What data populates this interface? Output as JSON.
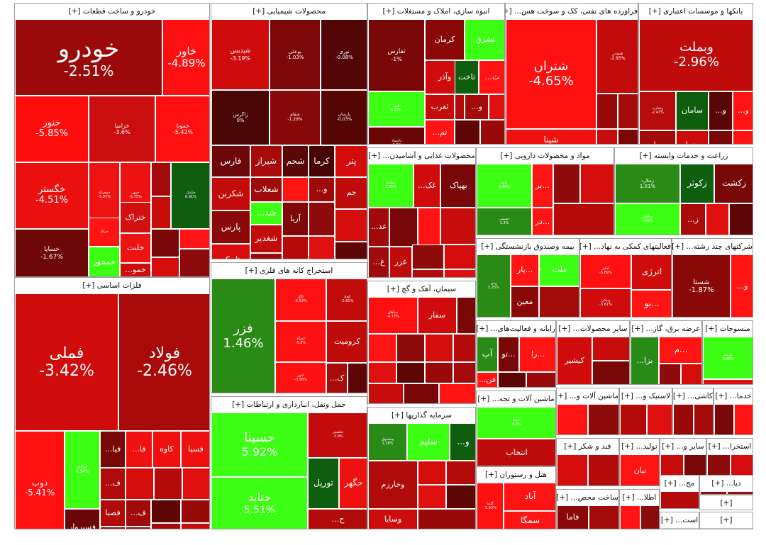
{
  "colors": {
    "deep_red": "#7a0000",
    "dark_red": "#8e0b0b",
    "red": "#c80b0b",
    "bright_red": "#ff1313",
    "light_green": "#3cff14",
    "dark_green": "#0f5e0f",
    "mid_green": "#2a8a16",
    "grey_border": "#9e9e9e"
  },
  "sectors": [
    {
      "title": "خودرو و ساخت قطعات [+]",
      "tiles": [
        {
          "name": "خودرو",
          "pct": "-2.51%",
          "color": "#9a0a0a"
        },
        {
          "name": "خاور",
          "pct": "-4.89%",
          "color": "#ff1010"
        },
        {
          "name": "خنور",
          "pct": "-5.85%",
          "color": "#ff0d0d"
        },
        {
          "name": "خزامیا",
          "pct": "-3.6%",
          "color": "#cc0e0e"
        },
        {
          "name": "خموتا",
          "pct": "-5.42%",
          "color": "#ff1010"
        },
        {
          "name": "خگستر",
          "pct": "-4.51%",
          "color": "#ea1010"
        },
        {
          "name": "خمحرکه",
          "pct": "-5.97%",
          "color": "#ef1212"
        },
        {
          "name": "خمهر",
          "pct": "-5.75%",
          "color": "#ee1111"
        },
        {
          "name": "خکمک",
          "pct": "0.91%",
          "color": "#0f5e0f"
        },
        {
          "name": "خساپا",
          "pct": "-1.67%",
          "color": "#6e0707"
        },
        {
          "name": "خراک",
          "pct": "",
          "color": "#ff1313"
        },
        {
          "name": "ختراک",
          "pct": "",
          "color": "#d21010"
        },
        {
          "name": "خلنت",
          "pct": "",
          "color": "#ee1313"
        },
        {
          "name": "خمحور",
          "pct": "",
          "color": "#3cff14"
        },
        {
          "name": "خمو...",
          "pct": "",
          "color": "#cc0e0e"
        }
      ]
    },
    {
      "title": "محصولات شیمیایی [+]",
      "tiles": [
        {
          "name": "شپدیس",
          "pct": "-3.19%",
          "color": "#cf0b0b"
        },
        {
          "name": "پوعلی",
          "pct": "-1.03%",
          "color": "#7c0707"
        },
        {
          "name": "نوری",
          "pct": "-0.08%",
          "color": "#520505"
        },
        {
          "name": "زاگرس",
          "pct": "0%",
          "color": "#4a0505"
        },
        {
          "name": "شفام",
          "pct": "-1.29%",
          "color": "#860808"
        },
        {
          "name": "پارسان",
          "pct": "-0.03%",
          "color": "#560505"
        },
        {
          "name": "فارس",
          "pct": "",
          "color": "#6e0707"
        },
        {
          "name": "شیراز",
          "pct": "",
          "color": "#a80a0a"
        },
        {
          "name": "شجم",
          "pct": "",
          "color": "#5a0606"
        },
        {
          "name": "کرما",
          "pct": "",
          "color": "#480404"
        },
        {
          "name": "پتر",
          "pct": "",
          "color": "#d40b0b"
        },
        {
          "name": "شکربن",
          "pct": "",
          "color": "#c40b0b"
        },
        {
          "name": "شعلاب",
          "pct": "",
          "color": "#a00a0a"
        },
        {
          "name": "شد...",
          "pct": "",
          "color": "#3cff14"
        },
        {
          "name": "جم",
          "pct": "",
          "color": "#be0b0b"
        },
        {
          "name": "پارس",
          "pct": "",
          "color": "#8a0808"
        },
        {
          "name": "آریا",
          "pct": "",
          "color": "#7e0808"
        },
        {
          "name": "شغدیر",
          "pct": "",
          "color": "#c20b0b"
        },
        {
          "name": "تاپیکو",
          "pct": "",
          "color": "#d80c0c"
        },
        {
          "name": "و...",
          "pct": "",
          "color": "#9e0a0a"
        }
      ]
    },
    {
      "title": "انبوه سازی، املاک و مستغلات [+]",
      "tiles": [
        {
          "name": "ثفارس",
          "pct": "-1%",
          "color": "#7a0707"
        },
        {
          "name": "کرمان",
          "pct": "",
          "color": "#8a0808"
        },
        {
          "name": "ثشرق",
          "pct": "",
          "color": "#3cff14"
        },
        {
          "name": "وآذر",
          "pct": "",
          "color": "#d00b0b"
        },
        {
          "name": "ثاخت",
          "pct": "",
          "color": "#0f5e0f"
        },
        {
          "name": "ث...",
          "pct": "",
          "color": "#ff1313"
        },
        {
          "name": "ثامید",
          "pct": "4.07%",
          "color": "#3cff14"
        },
        {
          "name": "ثغرب",
          "pct": "",
          "color": "#c60b0b"
        },
        {
          "name": "و...",
          "pct": "",
          "color": "#a40a0a"
        },
        {
          "name": "ثاعتماد",
          "pct": "-0.6%",
          "color": "#6a0606"
        },
        {
          "name": "ثم...",
          "pct": "",
          "color": "#ff1313"
        }
      ]
    },
    {
      "title": "فراورده های نفتی، کک و سوخت هس... [+]",
      "tiles": [
        {
          "name": "شتران",
          "pct": "-4.65%",
          "color": "#ff1010"
        },
        {
          "name": "شبندر",
          "pct": "-2.95%",
          "color": "#c40b0b"
        },
        {
          "name": "شپنا",
          "pct": "-4.09%",
          "color": "#ef1010"
        }
      ]
    },
    {
      "title": "بانکها و موسسات اعتباری [+]",
      "tiles": [
        {
          "name": "وبملت",
          "pct": "-2.96%",
          "color": "#c00b0b"
        },
        {
          "name": "وتجارت",
          "pct": "-2.47%",
          "color": "#b80b0b"
        },
        {
          "name": "سامان",
          "pct": "",
          "color": "#0f5e0f"
        },
        {
          "name": "و...",
          "pct": "",
          "color": "#5a0505"
        },
        {
          "name": "و...",
          "pct": "",
          "color": "#ff1313"
        },
        {
          "name": "وتجا",
          "pct": "",
          "color": "#cc0b0b"
        },
        {
          "name": "وبصادر",
          "pct": "",
          "color": "#a20a0a"
        }
      ]
    },
    {
      "title": "فلزات اساسی [+]",
      "tiles": [
        {
          "name": "فملی",
          "pct": "-3.42%",
          "color": "#cf0b0b"
        },
        {
          "name": "فولاد",
          "pct": "-2.46%",
          "color": "#a80a0a"
        },
        {
          "name": "ذوب",
          "pct": "-5.41%",
          "color": "#ff1010"
        },
        {
          "name": "فولای",
          "pct": "4.34%",
          "color": "#3cff14"
        },
        {
          "name": "فیا...",
          "pct": "",
          "color": "#7a0707"
        },
        {
          "name": "فا...",
          "pct": "",
          "color": "#ef1010"
        },
        {
          "name": "کاوه",
          "pct": "",
          "color": "#ef1010"
        },
        {
          "name": "فسپا",
          "pct": "",
          "color": "#ef1010"
        },
        {
          "name": "ف...",
          "pct": "",
          "color": "#b00a0a"
        },
        {
          "name": "فصبا",
          "pct": "",
          "color": "#b00a0a"
        },
        {
          "name": "ف...",
          "pct": "",
          "color": "#a00a0a"
        },
        {
          "name": "فسبزوار",
          "pct": "",
          "color": "#6a0606"
        },
        {
          "name": "ارفع",
          "pct": "",
          "color": "#9e0a0a"
        },
        {
          "name": "فغ...",
          "pct": "",
          "color": "#9e0a0a"
        }
      ]
    },
    {
      "title": "استخراج کانه های فلزی [+]",
      "tiles": [
        {
          "name": "فزر",
          "pct": "1.46%",
          "color": "#2a8a16"
        },
        {
          "name": "کگل",
          "pct": "-5.53%",
          "color": "#ff1010"
        },
        {
          "name": "کچاد",
          "pct": "-2.81%",
          "color": "#c40b0b"
        },
        {
          "name": "کرومیت",
          "pct": "",
          "color": "#c00b0b"
        },
        {
          "name": "کمیگد",
          "pct": "-5.8%",
          "color": "#ff1010"
        },
        {
          "name": "کنور",
          "pct": "-3.58%",
          "color": "#ff1010"
        },
        {
          "name": "ک...",
          "pct": "",
          "color": "#a80a0a"
        }
      ]
    },
    {
      "title": "محصولات غذایی و آشامیدن... [+]",
      "tiles": [
        {
          "name": "غمارم",
          "pct": "3.95%",
          "color": "#3cff14"
        },
        {
          "name": "غک...",
          "pct": "",
          "color": "#d00b0b"
        },
        {
          "name": "بهپاک",
          "pct": "",
          "color": "#7a0707"
        },
        {
          "name": "غد...",
          "pct": "",
          "color": "#a00a0a"
        },
        {
          "name": "غ...",
          "pct": "",
          "color": "#a00a0a"
        },
        {
          "name": "غزر",
          "pct": "",
          "color": "#c00b0b"
        },
        {
          "name": "غد...",
          "pct": "",
          "color": "#8e0808"
        }
      ]
    },
    {
      "title": "مواد و محصولات دارویی [+]",
      "tiles": [
        {
          "name": "دلوه",
          "pct": "5.93%",
          "color": "#3cff14"
        },
        {
          "name": "...بر",
          "pct": "",
          "color": "#ff1313"
        },
        {
          "name": "...در",
          "pct": "",
          "color": "#ff1313"
        },
        {
          "name": "دشیمی",
          "pct": "1.3%",
          "color": "#2a8a16"
        }
      ]
    },
    {
      "title": "زراعت و خدمات وابسته [+]",
      "tiles": [
        {
          "name": "زملارد",
          "pct": "1.01%",
          "color": "#2a8a16"
        },
        {
          "name": "زکوثر",
          "pct": "",
          "color": "#0f5e0f"
        },
        {
          "name": "زکشت",
          "pct": "",
          "color": "#7a0707"
        },
        {
          "name": "زماهان",
          "pct": "4.69%",
          "color": "#3cff14"
        },
        {
          "name": "ز...",
          "pct": "",
          "color": "#ab0a0a"
        }
      ]
    },
    {
      "title": "بیمه وصندوق بازنشستگی [+]",
      "tiles": [
        {
          "name": "ودی",
          "pct": "1.25%",
          "color": "#2a8a16"
        },
        {
          "name": "...پار",
          "pct": "",
          "color": "#ff1313"
        },
        {
          "name": "ملت",
          "pct": "",
          "color": "#3cff14"
        },
        {
          "name": "...ک",
          "pct": "",
          "color": "#a80a0a"
        },
        {
          "name": "معین",
          "pct": "",
          "color": "#8a0808"
        }
      ]
    },
    {
      "title": "فعالیتهای کمکی به نهاد... [+]",
      "tiles": [
        {
          "name": "اخابر",
          "pct": "-5.89%",
          "color": "#ff1010"
        },
        {
          "name": "انرژی",
          "pct": "",
          "color": "#d00b0b"
        },
        {
          "name": "ونیکی",
          "pct": "-3.61%",
          "color": "#cf0b0b"
        },
        {
          "name": "...بو",
          "pct": "",
          "color": "#ff1313"
        }
      ]
    },
    {
      "title": "شرکتهای چند رشته... [+]",
      "tiles": [
        {
          "name": "شستا",
          "pct": "-1.87%",
          "color": "#8a0808"
        },
        {
          "name": "و...",
          "pct": "",
          "color": "#ff1313"
        }
      ]
    },
    {
      "title": "حمل ونقل، انبارداری و ارتباطات [+]",
      "tiles": [
        {
          "name": "حسینا",
          "pct": "5.92%",
          "color": "#3cff14"
        },
        {
          "name": "حکشتی",
          "pct": "-2.9%",
          "color": "#c40b0b"
        },
        {
          "name": "تورپل",
          "pct": "",
          "color": "#0f5e0f"
        },
        {
          "name": "حگهر",
          "pct": "",
          "color": "#ef1010"
        },
        {
          "name": "حتاید",
          "pct": "5.51%",
          "color": "#3cff14"
        },
        {
          "name": "ح...",
          "pct": "",
          "color": "#b00a0a"
        }
      ]
    },
    {
      "title": "سیمان، آهک و گچ [+]",
      "tiles": [
        {
          "name": "سپاهان",
          "pct": "-4.77%",
          "color": "#ff1010"
        },
        {
          "name": "سفار",
          "pct": "",
          "color": "#d00b0b"
        }
      ]
    },
    {
      "title": "سرمایه گذاریها [+]",
      "tiles": [
        {
          "name": "وصندوق",
          "pct": "1.18%",
          "color": "#2a8a16"
        },
        {
          "name": "سلیم",
          "pct": "",
          "color": "#3cff14"
        },
        {
          "name": "و...",
          "pct": "",
          "color": "#0f5e0f"
        },
        {
          "name": "وخارزم",
          "pct": "",
          "color": "#b00a0a"
        },
        {
          "name": "وسایا",
          "pct": "",
          "color": "#cc0b0b"
        }
      ]
    },
    {
      "title": "رایانه و فعالیت‌های... [+]",
      "tiles": [
        {
          "name": "آپ",
          "pct": "",
          "color": "#2a8a16"
        },
        {
          "name": "...تو",
          "pct": "",
          "color": "#7a0707"
        },
        {
          "name": "...را",
          "pct": "",
          "color": "#ff1313"
        },
        {
          "name": "فن...",
          "pct": "",
          "color": "#ff1313"
        }
      ]
    },
    {
      "title": "سایر محصولات... [+]",
      "tiles": [
        {
          "name": "کیشیر",
          "pct": "",
          "color": "#d00b0b"
        }
      ]
    },
    {
      "title": "عرضه برق، گاز... [+]",
      "tiles": [
        {
          "name": "بزا...",
          "pct": "",
          "color": "#2a8a16"
        },
        {
          "name": "...م",
          "pct": "",
          "color": "#ff1313"
        }
      ]
    },
    {
      "title": "منسوجات [+]",
      "tiles": [
        {
          "name": "نمرینو",
          "pct": "5.99%",
          "color": "#3cff14"
        }
      ]
    },
    {
      "title": "ماشین آلات و تجه... [+]",
      "tiles": [
        {
          "name": "تکمبا",
          "pct": "4.4%",
          "color": "#3cff14"
        },
        {
          "name": "انتخاب",
          "pct": "",
          "color": "#c00b0b"
        }
      ]
    },
    {
      "title": "ماشین آلات و... [+]",
      "tiles": []
    },
    {
      "title": "لاستیک و... [+]",
      "tiles": []
    },
    {
      "title": "کاشی... [+]",
      "tiles": []
    },
    {
      "title": "خدما... [+]",
      "tiles": []
    },
    {
      "title": "قند و شکر [+]",
      "tiles": []
    },
    {
      "title": "تولید... [+]",
      "tiles": [
        {
          "name": "نیان",
          "pct": "",
          "color": "#ff1313"
        }
      ]
    },
    {
      "title": "سایر و... [+]",
      "tiles": []
    },
    {
      "title": "استخرا... [+]",
      "tiles": []
    },
    {
      "title": "هتل و رستوران [+]",
      "tiles": [
        {
          "name": "آباد",
          "pct": "",
          "color": "#ff1313"
        },
        {
          "name": "گلدیا",
          "pct": "-5.93%",
          "color": "#ff1010"
        },
        {
          "name": "سمگا",
          "pct": "",
          "color": "#ff1313"
        }
      ]
    },
    {
      "title": "ساخت محص... [+]",
      "tiles": [
        {
          "name": "فاما",
          "pct": "",
          "color": "#8a0808"
        }
      ]
    },
    {
      "title": "اطلا... [+]",
      "tiles": []
    },
    {
      "title": "مح... [+]",
      "tiles": []
    },
    {
      "title": "دیا... [+]",
      "tiles": []
    },
    {
      "title": "[+]",
      "tiles": []
    },
    {
      "title": "است... [+]",
      "tiles": []
    },
    {
      "title": "[+]",
      "tiles": []
    }
  ]
}
